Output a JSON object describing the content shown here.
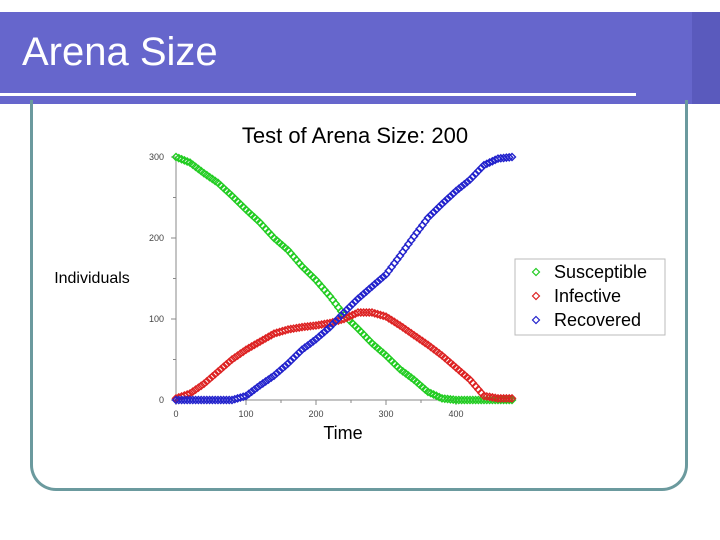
{
  "slide": {
    "title": "Arena Size"
  },
  "colors": {
    "title_bar": "#6666cc",
    "frame": "#6b9a9e",
    "susceptible": "#22cc22",
    "infective": "#dd2222",
    "recovered": "#2222cc"
  },
  "chart_data": {
    "type": "scatter",
    "title": "Test of Arena Size: 200",
    "xlabel": "Time",
    "ylabel": "Individuals",
    "xlim": [
      0,
      480
    ],
    "ylim": [
      0,
      300
    ],
    "x_ticks": [
      "0",
      "100",
      "200",
      "300",
      "400"
    ],
    "y_ticks": [
      "0",
      "100",
      "200",
      "300"
    ],
    "grid": false,
    "legend_position": "right",
    "marker": "diamond",
    "series": [
      {
        "name": "Susceptible",
        "color": "#22cc22",
        "x": [
          0,
          20,
          40,
          60,
          80,
          100,
          120,
          140,
          160,
          180,
          200,
          220,
          240,
          260,
          280,
          300,
          320,
          340,
          360,
          380,
          400,
          420,
          440,
          460,
          480
        ],
        "y": [
          300,
          293,
          280,
          268,
          252,
          235,
          219,
          200,
          185,
          165,
          148,
          128,
          105,
          88,
          70,
          55,
          38,
          25,
          10,
          2,
          0,
          0,
          0,
          0,
          0
        ]
      },
      {
        "name": "Infective",
        "color": "#dd2222",
        "x": [
          0,
          20,
          40,
          60,
          80,
          100,
          120,
          140,
          160,
          180,
          200,
          220,
          240,
          260,
          280,
          300,
          320,
          340,
          360,
          380,
          400,
          420,
          440,
          460,
          480
        ],
        "y": [
          2,
          8,
          20,
          35,
          50,
          62,
          72,
          82,
          87,
          90,
          92,
          95,
          100,
          108,
          108,
          103,
          92,
          80,
          68,
          55,
          40,
          25,
          5,
          2,
          2
        ]
      },
      {
        "name": "Recovered",
        "color": "#2222cc",
        "x": [
          0,
          20,
          40,
          60,
          80,
          100,
          120,
          140,
          160,
          180,
          200,
          220,
          240,
          260,
          280,
          300,
          320,
          340,
          360,
          380,
          400,
          420,
          440,
          460,
          480
        ],
        "y": [
          0,
          0,
          0,
          0,
          0,
          5,
          18,
          30,
          45,
          62,
          75,
          90,
          108,
          125,
          140,
          155,
          178,
          202,
          225,
          242,
          258,
          272,
          290,
          298,
          300
        ]
      }
    ]
  }
}
